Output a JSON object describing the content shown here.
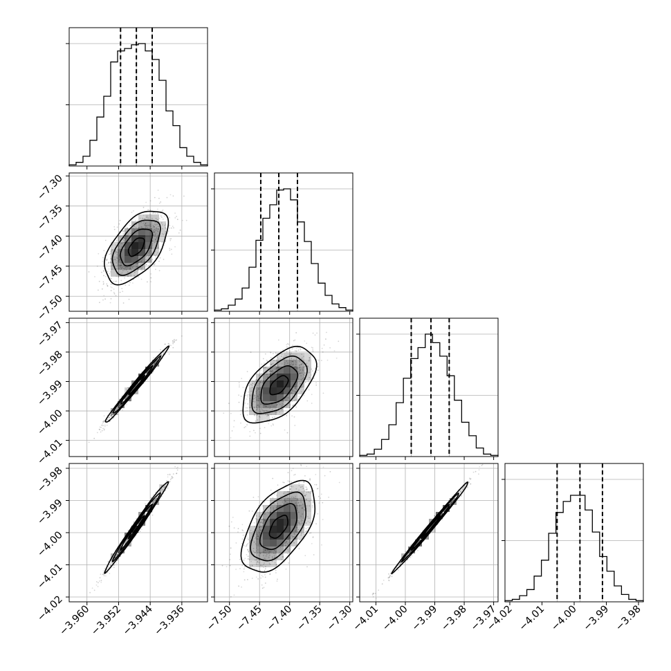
{
  "chart_data": {
    "type": "corner",
    "parameters": [
      {
        "range": [
          -3.9645,
          -3.9295
        ],
        "ticks": [
          -3.96,
          -3.952,
          -3.944,
          -3.936
        ],
        "tick_labels": [
          "−3.960",
          "−3.952",
          "−3.944",
          "−3.936"
        ],
        "quantiles": [
          -3.9515,
          -3.9475,
          -3.9435
        ],
        "hist": {
          "counts": [
            1,
            3,
            8,
            21,
            40,
            57,
            85,
            94,
            96,
            99,
            100,
            94,
            87,
            70,
            45,
            33,
            15,
            8,
            3,
            1
          ],
          "max": 113
        }
      },
      {
        "range": [
          -7.525,
          -7.295
        ],
        "ticks": [
          -7.5,
          -7.45,
          -7.4,
          -7.35,
          -7.3
        ],
        "tick_labels": [
          "−7.50",
          "−7.45",
          "−7.40",
          "−7.35",
          "−7.30"
        ],
        "quantiles": [
          -7.448,
          -7.418,
          -7.387
        ],
        "hist": {
          "counts": [
            1,
            2,
            5,
            10,
            19,
            36,
            58,
            76,
            87,
            99,
            100,
            91,
            73,
            57,
            39,
            23,
            13,
            6,
            3,
            1
          ],
          "max": 113
        }
      },
      {
        "range": [
          -4.0155,
          -3.9685
        ],
        "ticks": [
          -4.01,
          -4.0,
          -3.99,
          -3.98,
          -3.97
        ],
        "tick_labels": [
          "−4.01",
          "−4.00",
          "−3.99",
          "−3.98",
          "−3.97"
        ],
        "quantiles": [
          -3.998,
          -3.9913,
          -3.9851
        ],
        "hist": {
          "counts": [
            1,
            2,
            6,
            14,
            26,
            44,
            64,
            80,
            89,
            100,
            93,
            82,
            66,
            46,
            28,
            17,
            7,
            2,
            1
          ],
          "max": 113
        }
      },
      {
        "range": [
          -4.0215,
          -3.9785
        ],
        "ticks": [
          -4.02,
          -4.01,
          -4.0,
          -3.99,
          -3.98
        ],
        "tick_labels": [
          "−4.02",
          "−4.01",
          "−4.00",
          "−3.99",
          "−3.98"
        ],
        "quantiles": [
          -4.0053,
          -3.9982,
          -3.9912
        ],
        "hist": {
          "counts": [
            1,
            2,
            5,
            10,
            21,
            34,
            56,
            73,
            82,
            87,
            87,
            75,
            57,
            37,
            25,
            13,
            6,
            2,
            1
          ],
          "max": 113
        }
      }
    ],
    "pairs": [
      {
        "row": 1,
        "col": 0,
        "rho": 0.55
      },
      {
        "row": 2,
        "col": 0,
        "rho": 0.99
      },
      {
        "row": 2,
        "col": 1,
        "rho": 0.55
      },
      {
        "row": 3,
        "col": 0,
        "rho": 0.99
      },
      {
        "row": 3,
        "col": 1,
        "rho": 0.55
      },
      {
        "row": 3,
        "col": 2,
        "rho": 0.995
      }
    ],
    "contour_levels": [
      "0.5σ",
      "1σ",
      "1.5σ",
      "2σ"
    ],
    "grid": true
  }
}
